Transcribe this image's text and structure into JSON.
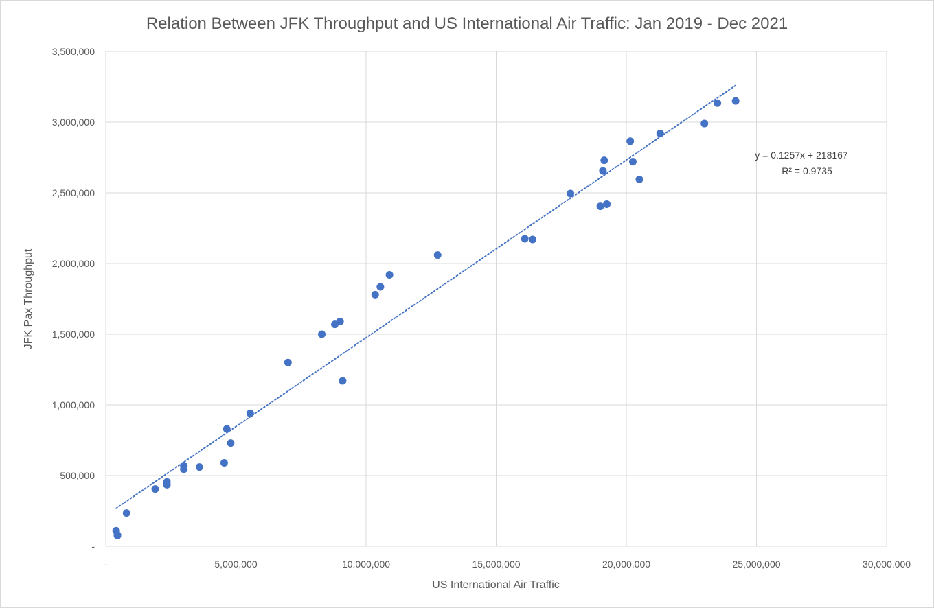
{
  "chart_data": {
    "type": "scatter",
    "title": "Relation Between JFK Throughput and US International Air Traffic: Jan 2019 - Dec 2021",
    "xlabel": "US International Air Traffic",
    "ylabel": "JFK Pax Throughput",
    "xlim": [
      0,
      30000000
    ],
    "ylim": [
      0,
      3500000
    ],
    "x_ticks": [
      {
        "value": 0,
        "label": "-"
      },
      {
        "value": 5000000,
        "label": "5,000,000"
      },
      {
        "value": 10000000,
        "label": "10,000,000"
      },
      {
        "value": 15000000,
        "label": "15,000,000"
      },
      {
        "value": 20000000,
        "label": "20,000,000"
      },
      {
        "value": 25000000,
        "label": "25,000,000"
      },
      {
        "value": 30000000,
        "label": "30,000,000"
      }
    ],
    "y_ticks": [
      {
        "value": 0,
        "label": "-"
      },
      {
        "value": 500000,
        "label": "500,000"
      },
      {
        "value": 1000000,
        "label": "1,000,000"
      },
      {
        "value": 1500000,
        "label": "1,500,000"
      },
      {
        "value": 2000000,
        "label": "2,000,000"
      },
      {
        "value": 2500000,
        "label": "2,500,000"
      },
      {
        "value": 3000000,
        "label": "3,000,000"
      },
      {
        "value": 3500000,
        "label": "3,500,000"
      }
    ],
    "grid": true,
    "marker_color": "#4472c4",
    "trendline_color": "#4472c4",
    "series": [
      {
        "points": [
          {
            "x": 24200000,
            "y": 3150000
          },
          {
            "x": 23500000,
            "y": 3135000
          },
          {
            "x": 23000000,
            "y": 2990000
          },
          {
            "x": 21300000,
            "y": 2920000
          },
          {
            "x": 20150000,
            "y": 2865000
          },
          {
            "x": 19150000,
            "y": 2730000
          },
          {
            "x": 20250000,
            "y": 2720000
          },
          {
            "x": 19100000,
            "y": 2655000
          },
          {
            "x": 20500000,
            "y": 2595000
          },
          {
            "x": 17850000,
            "y": 2495000
          },
          {
            "x": 19250000,
            "y": 2420000
          },
          {
            "x": 19000000,
            "y": 2405000
          },
          {
            "x": 16100000,
            "y": 2175000
          },
          {
            "x": 16400000,
            "y": 2170000
          },
          {
            "x": 12750000,
            "y": 2060000
          },
          {
            "x": 10900000,
            "y": 1920000
          },
          {
            "x": 10550000,
            "y": 1835000
          },
          {
            "x": 10350000,
            "y": 1780000
          },
          {
            "x": 9000000,
            "y": 1590000
          },
          {
            "x": 8800000,
            "y": 1570000
          },
          {
            "x": 8300000,
            "y": 1500000
          },
          {
            "x": 7000000,
            "y": 1300000
          },
          {
            "x": 9100000,
            "y": 1170000
          },
          {
            "x": 5550000,
            "y": 940000
          },
          {
            "x": 4650000,
            "y": 830000
          },
          {
            "x": 4800000,
            "y": 730000
          },
          {
            "x": 4550000,
            "y": 590000
          },
          {
            "x": 3000000,
            "y": 570000
          },
          {
            "x": 3600000,
            "y": 560000
          },
          {
            "x": 3000000,
            "y": 545000
          },
          {
            "x": 2350000,
            "y": 455000
          },
          {
            "x": 2350000,
            "y": 435000
          },
          {
            "x": 1900000,
            "y": 405000
          },
          {
            "x": 800000,
            "y": 235000
          },
          {
            "x": 400000,
            "y": 110000
          },
          {
            "x": 450000,
            "y": 80000
          },
          {
            "x": 450000,
            "y": 75000
          }
        ]
      }
    ],
    "trendline": {
      "slope": 0.1257,
      "intercept": 218167,
      "x_start": 400000,
      "x_end": 24200000,
      "style": "dotted",
      "equation_label": "y = 0.1257x + 218167",
      "r2_label": "R² = 0.9735"
    }
  }
}
